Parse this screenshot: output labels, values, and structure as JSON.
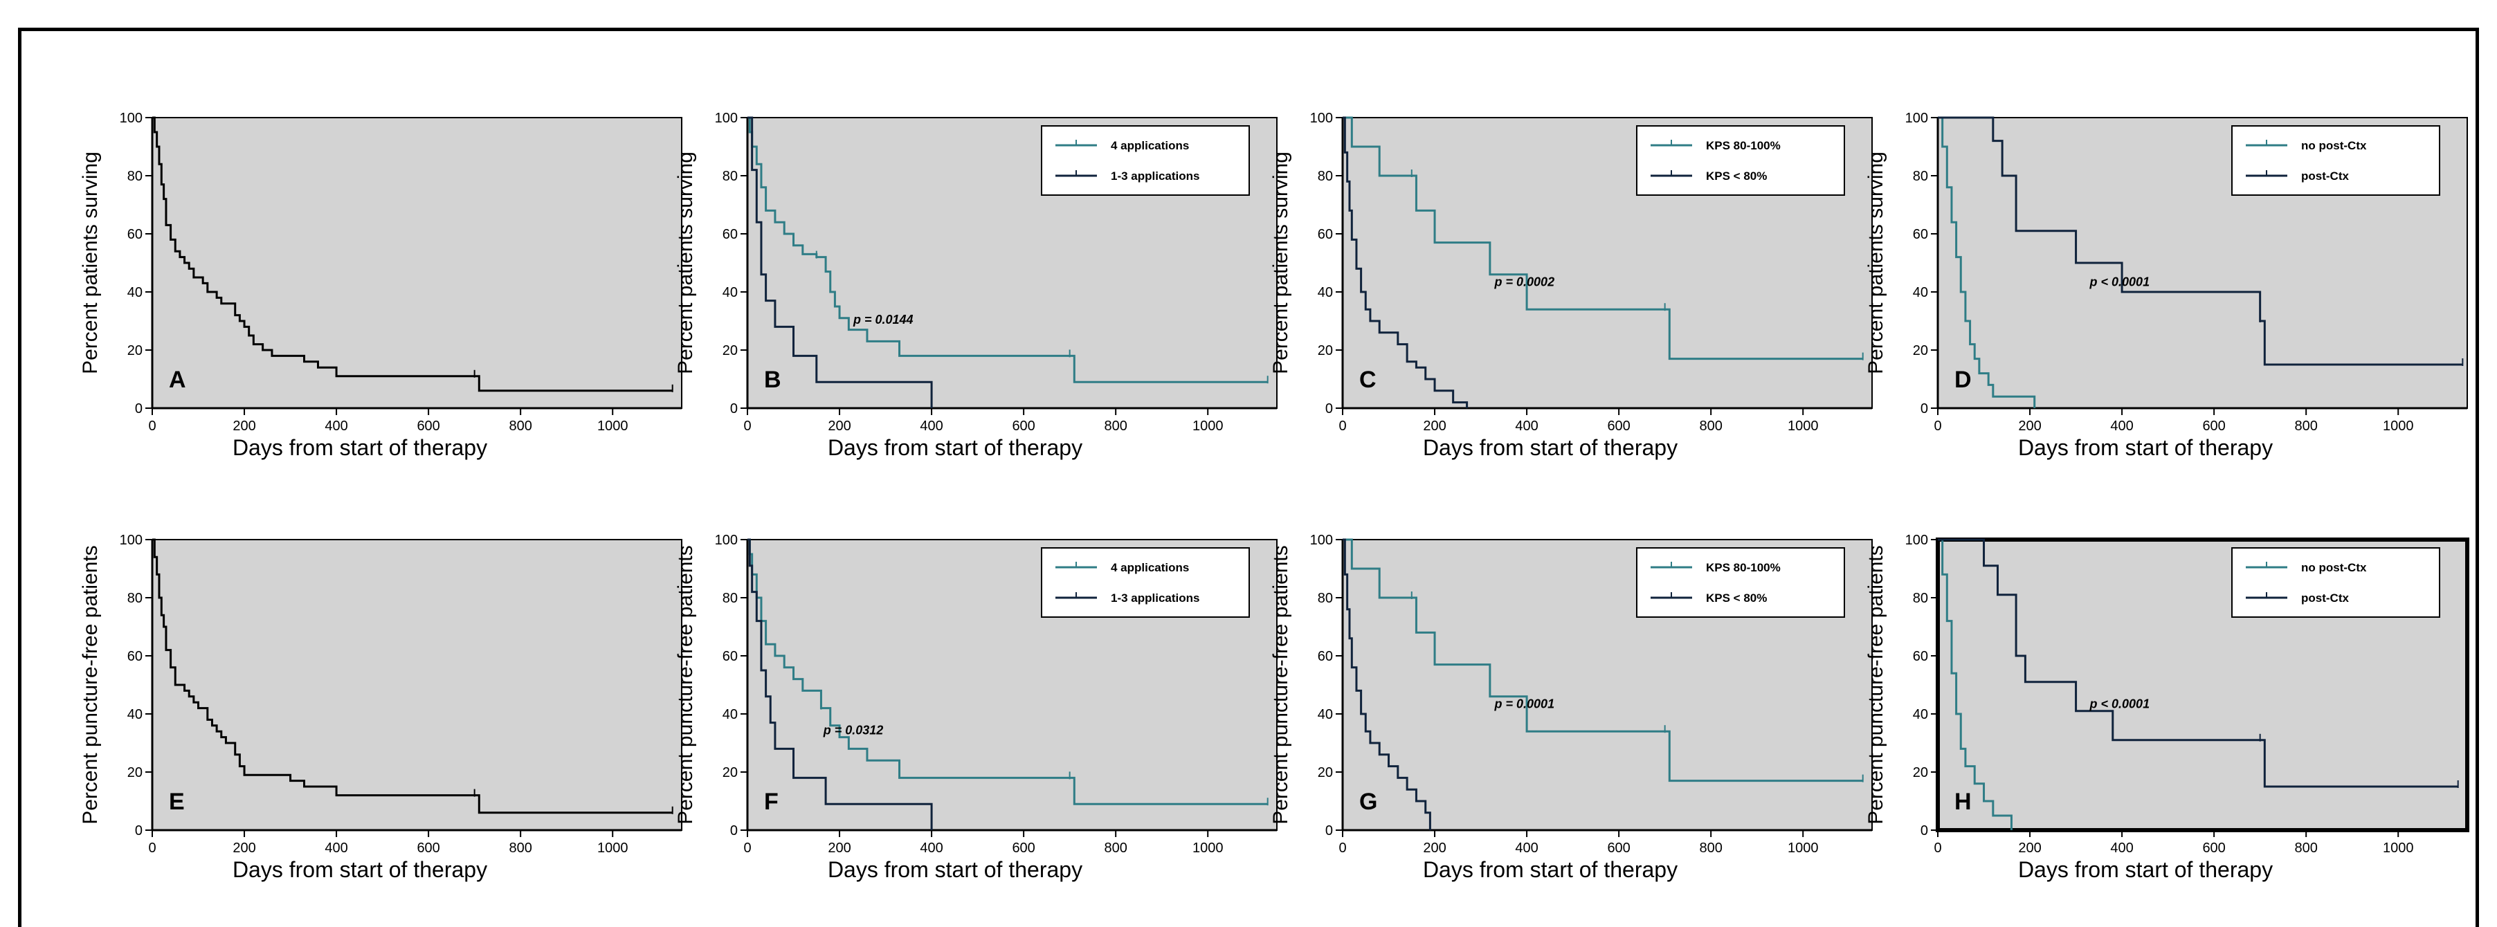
{
  "colors": {
    "teal": "#2f7d86",
    "navy": "#10233c",
    "black": "#000000",
    "panel_bg": "#d3d3d3"
  },
  "chart_data": [
    {
      "panel": "A",
      "type": "line",
      "xlabel": "Days from start of therapy",
      "ylabel": "Percent patients surving",
      "xlim": [
        0,
        1150
      ],
      "ylim": [
        0,
        100
      ],
      "xticks": [
        "0",
        "200",
        "400",
        "600",
        "800",
        "1000"
      ],
      "yticks": [
        "0",
        "20",
        "40",
        "60",
        "80",
        "100"
      ],
      "p_value": "",
      "legend": [],
      "series": [
        {
          "name": "",
          "color": "black",
          "x": [
            0,
            5,
            10,
            15,
            20,
            25,
            30,
            40,
            50,
            60,
            70,
            80,
            90,
            110,
            120,
            140,
            150,
            170,
            180,
            190,
            200,
            210,
            220,
            240,
            260,
            280,
            300,
            330,
            360,
            400,
            500,
            600,
            700,
            710,
            800,
            900,
            1000,
            1130
          ],
          "y": [
            100,
            95,
            90,
            84,
            77,
            72,
            63,
            58,
            54,
            52,
            50,
            48,
            45,
            43,
            40,
            38,
            36,
            36,
            32,
            30,
            28,
            25,
            22,
            20,
            18,
            18,
            18,
            16,
            14,
            11,
            11,
            11,
            11,
            6,
            6,
            6,
            6,
            6
          ],
          "censor_x": [
            700,
            1130
          ]
        }
      ]
    },
    {
      "panel": "B",
      "type": "line",
      "xlabel": "Days from start of therapy",
      "ylabel": "Percent patients surving",
      "xlim": [
        0,
        1150
      ],
      "ylim": [
        0,
        100
      ],
      "xticks": [
        "0",
        "200",
        "400",
        "600",
        "800",
        "1000"
      ],
      "yticks": [
        "0",
        "20",
        "40",
        "60",
        "80",
        "100"
      ],
      "p_value": "p = 0.0144",
      "legend": [
        {
          "label": "4 applications",
          "color": "teal"
        },
        {
          "label": "1-3 applications",
          "color": "navy"
        }
      ],
      "series": [
        {
          "name": "4 applications",
          "color": "teal",
          "x": [
            0,
            5,
            10,
            20,
            30,
            40,
            60,
            80,
            100,
            120,
            150,
            170,
            180,
            190,
            200,
            220,
            260,
            330,
            700,
            710,
            1130
          ],
          "y": [
            100,
            95,
            90,
            84,
            76,
            68,
            64,
            60,
            56,
            53,
            52,
            47,
            40,
            35,
            31,
            27,
            23,
            18,
            18,
            9,
            9
          ],
          "censor_x": [
            150,
            700,
            1130
          ]
        },
        {
          "name": "1-3 applications",
          "color": "navy",
          "x": [
            0,
            10,
            20,
            30,
            40,
            60,
            100,
            150,
            400
          ],
          "y": [
            100,
            82,
            64,
            46,
            37,
            28,
            18,
            9,
            0
          ],
          "censor_x": []
        }
      ]
    },
    {
      "panel": "C",
      "type": "line",
      "xlabel": "Days from start of therapy",
      "ylabel": "Percent patients surving",
      "xlim": [
        0,
        1150
      ],
      "ylim": [
        0,
        100
      ],
      "xticks": [
        "0",
        "200",
        "400",
        "600",
        "800",
        "1000"
      ],
      "yticks": [
        "0",
        "20",
        "40",
        "60",
        "80",
        "100"
      ],
      "p_value": "p = 0.0002",
      "legend": [
        {
          "label": "KPS 80-100%",
          "color": "teal"
        },
        {
          "label": "KPS < 80%",
          "color": "navy"
        }
      ],
      "series": [
        {
          "name": "KPS 80-100%",
          "color": "teal",
          "x": [
            0,
            20,
            80,
            160,
            200,
            320,
            400,
            700,
            710,
            1130
          ],
          "y": [
            100,
            90,
            80,
            68,
            57,
            46,
            34,
            34,
            17,
            17
          ],
          "censor_x": [
            150,
            700,
            1130
          ]
        },
        {
          "name": "KPS < 80%",
          "color": "navy",
          "x": [
            0,
            5,
            10,
            15,
            20,
            30,
            40,
            50,
            60,
            80,
            100,
            120,
            140,
            160,
            180,
            200,
            240,
            270
          ],
          "y": [
            100,
            88,
            78,
            68,
            58,
            48,
            40,
            34,
            30,
            26,
            26,
            22,
            16,
            14,
            10,
            6,
            2,
            0
          ],
          "censor_x": []
        }
      ]
    },
    {
      "panel": "D",
      "type": "line",
      "xlabel": "Days from start of therapy",
      "ylabel": "Percent patients surving",
      "xlim": [
        0,
        1150
      ],
      "ylim": [
        0,
        100
      ],
      "xticks": [
        "0",
        "200",
        "400",
        "600",
        "800",
        "1000"
      ],
      "yticks": [
        "0",
        "20",
        "40",
        "60",
        "80",
        "100"
      ],
      "p_value": "p < 0.0001",
      "legend": [
        {
          "label": "no post-Ctx",
          "color": "teal"
        },
        {
          "label": "post-Ctx",
          "color": "navy"
        }
      ],
      "series": [
        {
          "name": "no post-Ctx",
          "color": "teal",
          "x": [
            0,
            10,
            20,
            30,
            40,
            50,
            60,
            70,
            80,
            90,
            110,
            120,
            150,
            210
          ],
          "y": [
            100,
            90,
            76,
            64,
            52,
            40,
            30,
            22,
            17,
            12,
            8,
            4,
            4,
            0
          ],
          "censor_x": []
        },
        {
          "name": "post-Ctx",
          "color": "navy",
          "x": [
            0,
            120,
            140,
            170,
            200,
            300,
            400,
            700,
            710,
            1140
          ],
          "y": [
            100,
            92,
            80,
            61,
            61,
            50,
            40,
            30,
            15,
            15
          ],
          "censor_x": [
            700,
            1140
          ]
        }
      ]
    },
    {
      "panel": "E",
      "type": "line",
      "xlabel": "Days from start of therapy",
      "ylabel": "Percent puncture-free patients",
      "xlim": [
        0,
        1150
      ],
      "ylim": [
        0,
        100
      ],
      "xticks": [
        "0",
        "200",
        "400",
        "600",
        "800",
        "1000"
      ],
      "yticks": [
        "0",
        "20",
        "40",
        "60",
        "80",
        "100"
      ],
      "p_value": "",
      "legend": [],
      "series": [
        {
          "name": "",
          "color": "black",
          "x": [
            0,
            5,
            10,
            15,
            20,
            25,
            30,
            40,
            50,
            70,
            80,
            90,
            100,
            120,
            130,
            140,
            150,
            160,
            180,
            190,
            200,
            300,
            330,
            400,
            700,
            710,
            1130
          ],
          "y": [
            100,
            94,
            88,
            80,
            74,
            70,
            62,
            56,
            50,
            48,
            46,
            44,
            42,
            38,
            36,
            34,
            32,
            30,
            26,
            22,
            19,
            17,
            15,
            12,
            12,
            6,
            6
          ],
          "censor_x": [
            700,
            1130
          ]
        }
      ]
    },
    {
      "panel": "F",
      "type": "line",
      "xlabel": "Days from start of therapy",
      "ylabel": "Percent puncture-free patients",
      "xlim": [
        0,
        1150
      ],
      "ylim": [
        0,
        100
      ],
      "xticks": [
        "0",
        "200",
        "400",
        "600",
        "800",
        "1000"
      ],
      "yticks": [
        "0",
        "20",
        "40",
        "60",
        "80",
        "100"
      ],
      "p_value": "p = 0.0312",
      "legend": [
        {
          "label": "4 applications",
          "color": "teal"
        },
        {
          "label": "1-3 applications",
          "color": "navy"
        }
      ],
      "series": [
        {
          "name": "4 applications",
          "color": "teal",
          "x": [
            0,
            5,
            10,
            20,
            30,
            40,
            60,
            80,
            100,
            120,
            160,
            180,
            200,
            220,
            260,
            330,
            700,
            710,
            1130
          ],
          "y": [
            100,
            95,
            88,
            80,
            72,
            64,
            60,
            56,
            52,
            48,
            42,
            36,
            32,
            28,
            24,
            18,
            18,
            9,
            9
          ],
          "censor_x": [
            160,
            700,
            1130
          ]
        },
        {
          "name": "1-3 applications",
          "color": "navy",
          "x": [
            0,
            5,
            10,
            20,
            30,
            40,
            50,
            60,
            100,
            170,
            400
          ],
          "y": [
            100,
            91,
            82,
            72,
            55,
            46,
            37,
            28,
            18,
            9,
            0
          ],
          "censor_x": []
        }
      ]
    },
    {
      "panel": "G",
      "type": "line",
      "xlabel": "Days from start of therapy",
      "ylabel": "Percent puncture-free patients",
      "xlim": [
        0,
        1150
      ],
      "ylim": [
        0,
        100
      ],
      "xticks": [
        "0",
        "200",
        "400",
        "600",
        "800",
        "1000"
      ],
      "yticks": [
        "0",
        "20",
        "40",
        "60",
        "80",
        "100"
      ],
      "p_value": "p = 0.0001",
      "legend": [
        {
          "label": "KPS 80-100%",
          "color": "teal"
        },
        {
          "label": "KPS < 80%",
          "color": "navy"
        }
      ],
      "series": [
        {
          "name": "KPS 80-100%",
          "color": "teal",
          "x": [
            0,
            20,
            80,
            160,
            200,
            320,
            400,
            700,
            710,
            1130
          ],
          "y": [
            100,
            90,
            80,
            68,
            57,
            46,
            34,
            34,
            17,
            17
          ],
          "censor_x": [
            150,
            700,
            1130
          ]
        },
        {
          "name": "KPS < 80%",
          "color": "navy",
          "x": [
            0,
            5,
            10,
            15,
            20,
            30,
            40,
            50,
            60,
            80,
            100,
            120,
            140,
            160,
            180,
            190
          ],
          "y": [
            100,
            88,
            76,
            66,
            56,
            48,
            40,
            34,
            30,
            26,
            22,
            18,
            14,
            10,
            6,
            0
          ],
          "censor_x": []
        }
      ]
    },
    {
      "panel": "H",
      "type": "line",
      "xlabel": "Days from start of therapy",
      "ylabel": "Percent puncture-free patients",
      "xlim": [
        0,
        1150
      ],
      "ylim": [
        0,
        100
      ],
      "xticks": [
        "0",
        "200",
        "400",
        "600",
        "800",
        "1000"
      ],
      "yticks": [
        "0",
        "20",
        "40",
        "60",
        "80",
        "100"
      ],
      "p_value": "p < 0.0001",
      "legend": [
        {
          "label": "no post-Ctx",
          "color": "teal"
        },
        {
          "label": "post-Ctx",
          "color": "navy"
        }
      ],
      "series": [
        {
          "name": "no post-Ctx",
          "color": "teal",
          "x": [
            0,
            10,
            20,
            30,
            40,
            50,
            60,
            80,
            100,
            120,
            160
          ],
          "y": [
            100,
            88,
            72,
            54,
            40,
            28,
            22,
            16,
            10,
            5,
            0
          ],
          "censor_x": []
        },
        {
          "name": "post-Ctx",
          "color": "navy",
          "x": [
            0,
            100,
            130,
            170,
            190,
            300,
            380,
            700,
            710,
            1130
          ],
          "y": [
            100,
            91,
            81,
            60,
            51,
            41,
            31,
            31,
            15,
            15
          ],
          "censor_x": [
            700,
            1130
          ]
        }
      ]
    }
  ]
}
